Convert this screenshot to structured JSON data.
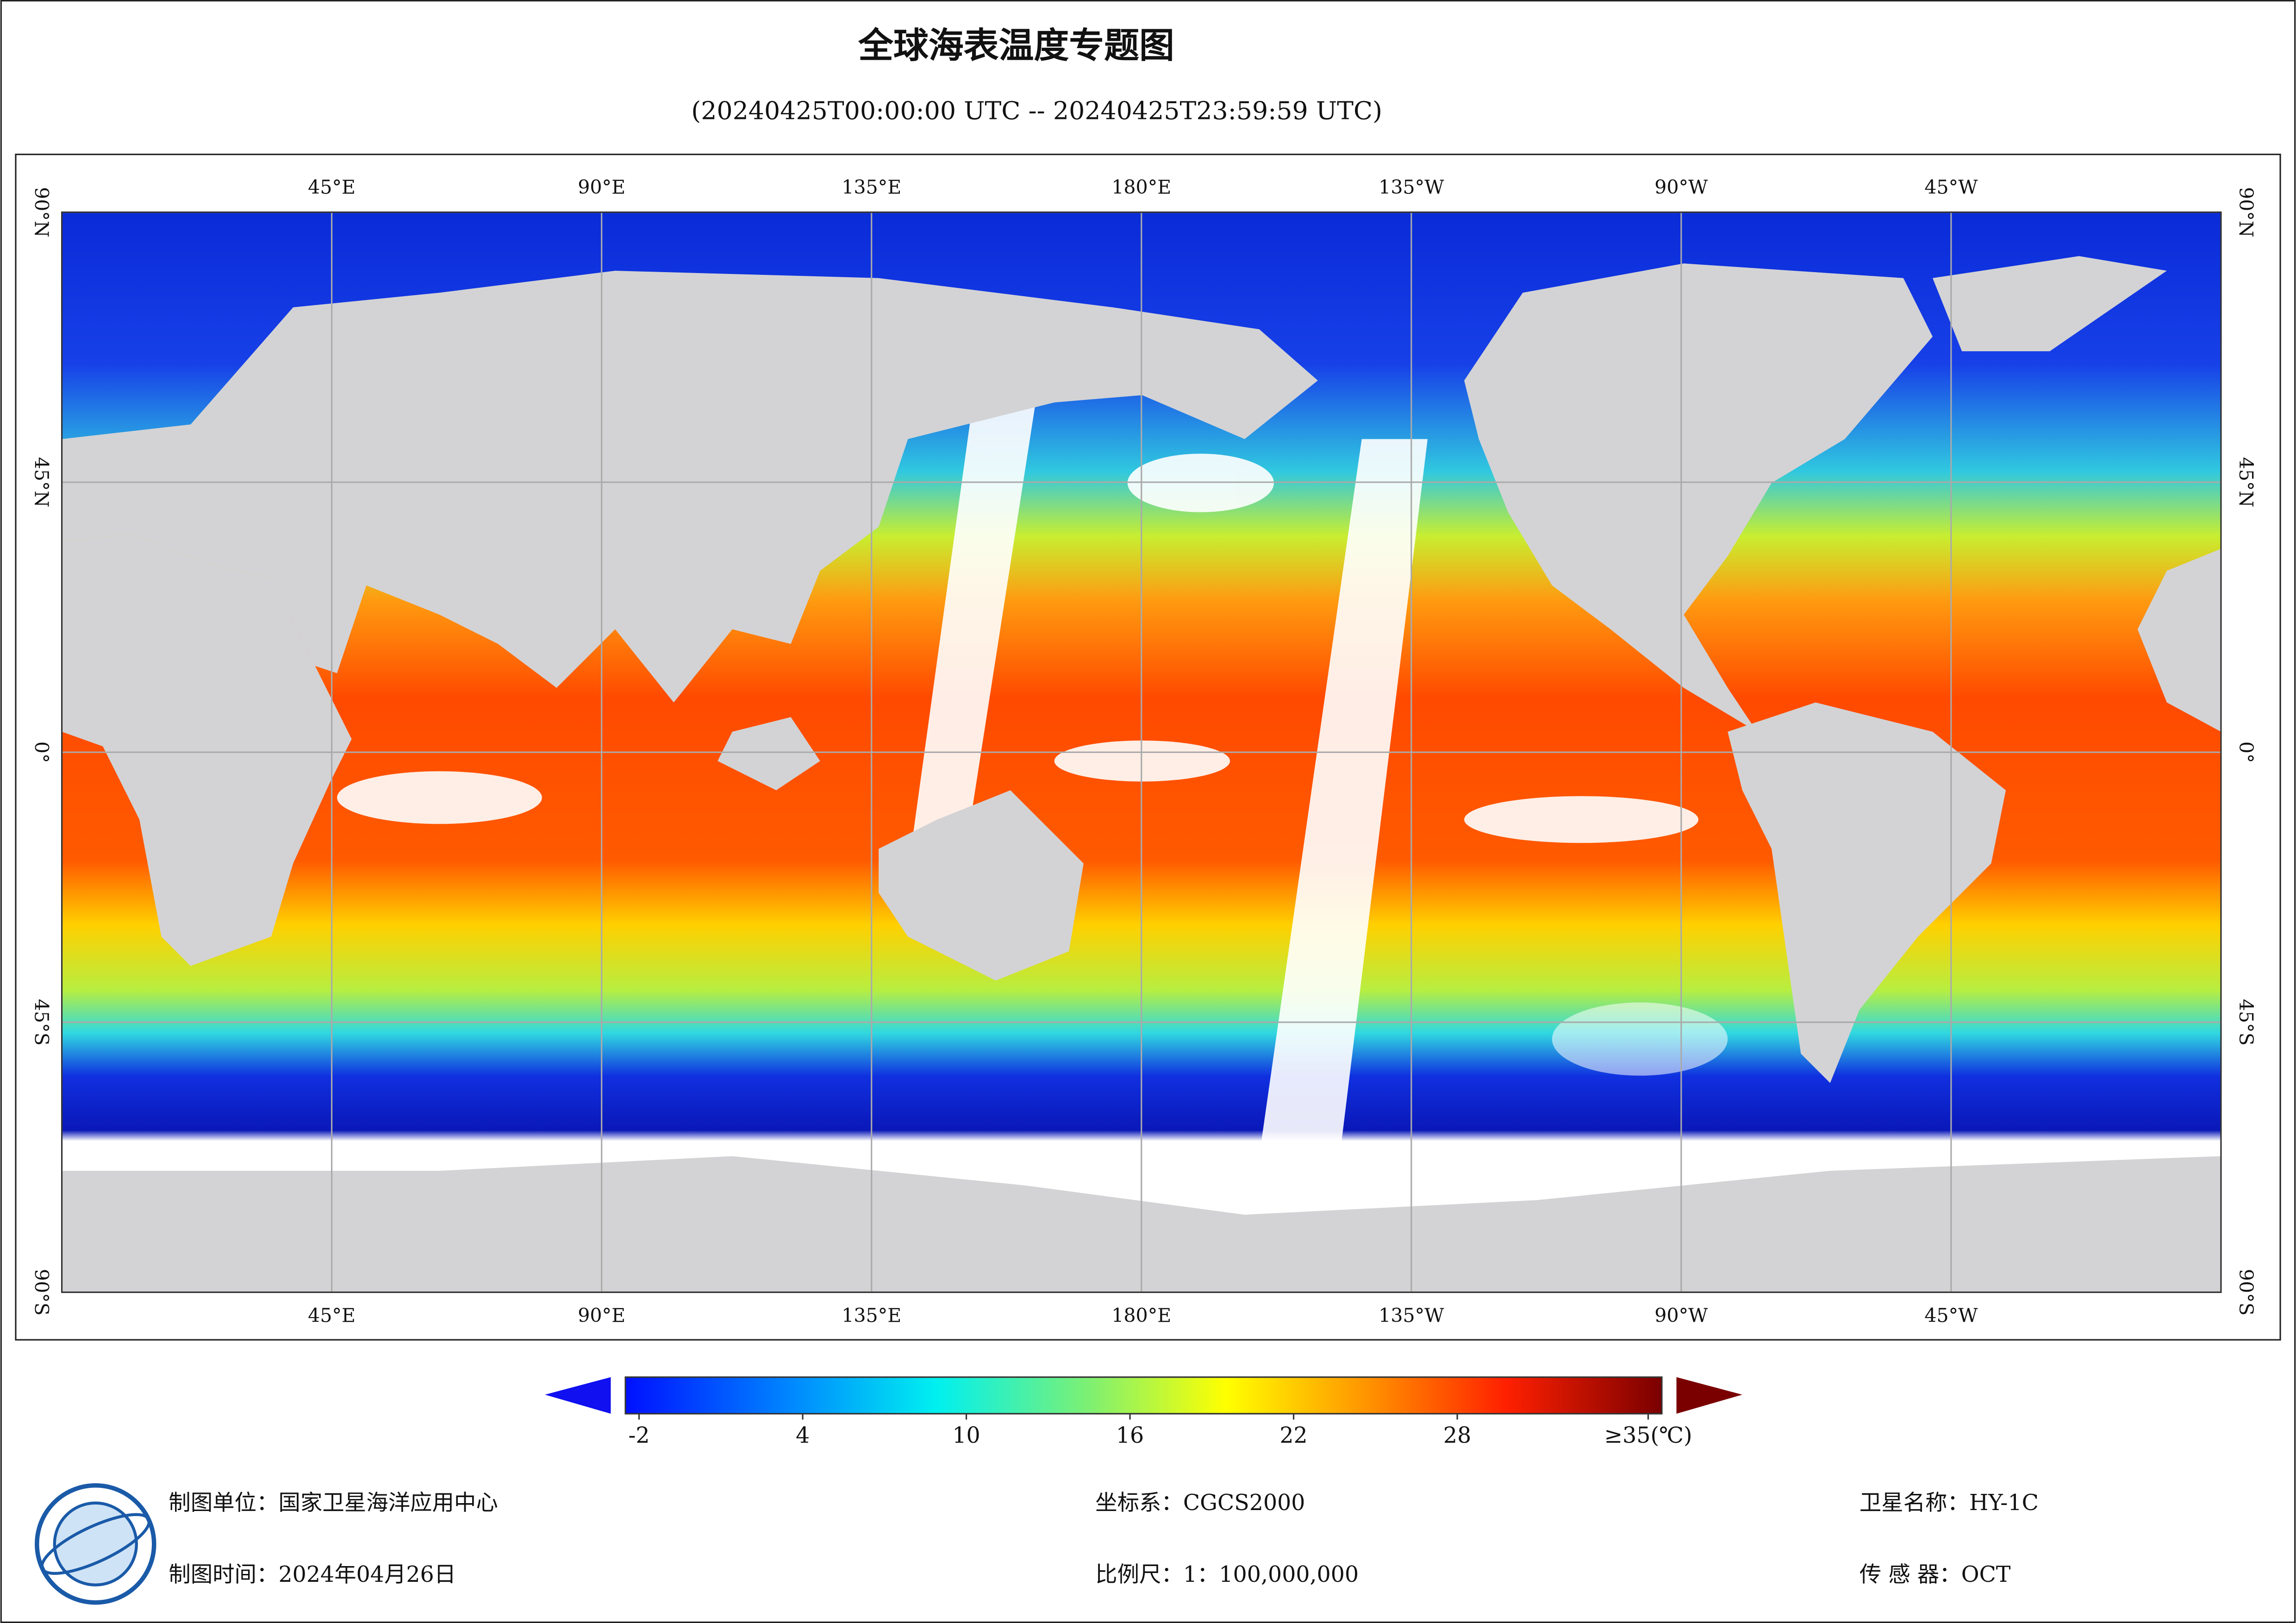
{
  "title": "全球海表温度专题图",
  "subtitle": "(20240425T00:00:00 UTC -- 20240425T23:59:59 UTC)",
  "map": {
    "lon_range": [
      0,
      360
    ],
    "lat_range": [
      -90,
      90
    ],
    "lon_ticks": [
      {
        "value": 45,
        "label": "45°E"
      },
      {
        "value": 90,
        "label": "90°E"
      },
      {
        "value": 135,
        "label": "135°E"
      },
      {
        "value": 180,
        "label": "180°E"
      },
      {
        "value": 225,
        "label": "135°W"
      },
      {
        "value": 270,
        "label": "90°W"
      },
      {
        "value": 315,
        "label": "45°W"
      }
    ],
    "lat_ticks": [
      {
        "value": 90,
        "label": "90°N"
      },
      {
        "value": 45,
        "label": "45°N"
      },
      {
        "value": 0,
        "label": "0°"
      },
      {
        "value": -45,
        "label": "45°S"
      },
      {
        "value": -90,
        "label": "90°S"
      }
    ],
    "grid": true
  },
  "colorbar": {
    "range": [
      -2.5,
      35.5
    ],
    "ticks": [
      -2,
      4,
      10,
      16,
      22,
      28,
      {
        "value": 35,
        "label": "≥35(℃)"
      }
    ]
  },
  "footer": {
    "unit": "制图单位：国家卫星海洋应用中心",
    "date": "制图时间：2024年04月26日",
    "crs": "坐标系：CGCS2000",
    "scale": "比例尺：1：100,000,000",
    "satellite": "卫星名称：HY-1C",
    "sensor": "传 感 器：OCT"
  }
}
